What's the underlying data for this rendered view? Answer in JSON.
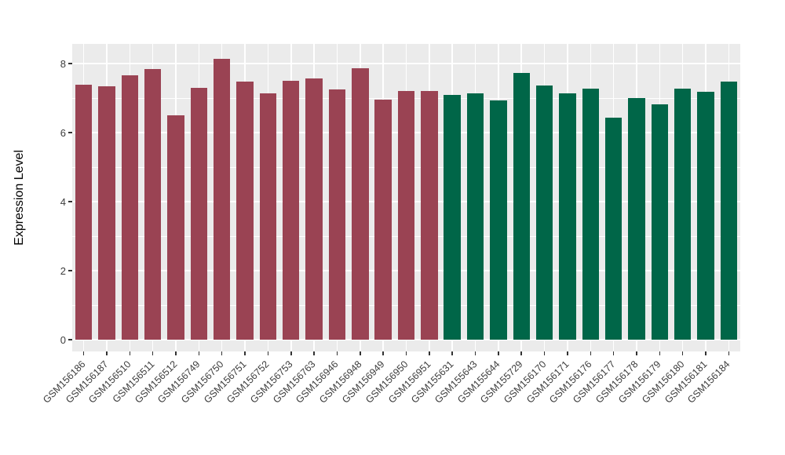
{
  "chart_data": {
    "type": "bar",
    "title": "",
    "xlabel": "",
    "ylabel": "Expression Level",
    "ylim": [
      0,
      8.6
    ],
    "yticks": [
      0,
      2,
      4,
      6,
      8
    ],
    "yticks_minor": [
      1,
      3,
      5,
      7
    ],
    "grid": "on",
    "legend": "none",
    "panel_bg": "#EBEBEB",
    "grid_color": "#FFFFFF",
    "tick_color": "#333333",
    "axis_text_color": "#3d3d3d",
    "group_colors": [
      "#9A4353",
      "#006648"
    ],
    "categories": [
      "GSM156186",
      "GSM156187",
      "GSM156510",
      "GSM156511",
      "GSM156512",
      "GSM156749",
      "GSM156750",
      "GSM156751",
      "GSM156752",
      "GSM156753",
      "GSM156763",
      "GSM156946",
      "GSM156948",
      "GSM156949",
      "GSM156950",
      "GSM156951",
      "GSM155631",
      "GSM155643",
      "GSM155644",
      "GSM155729",
      "GSM156170",
      "GSM156171",
      "GSM156176",
      "GSM156177",
      "GSM156178",
      "GSM156179",
      "GSM156180",
      "GSM156181",
      "GSM156184"
    ],
    "values": [
      7.39,
      7.33,
      7.65,
      7.83,
      6.49,
      7.29,
      8.13,
      7.48,
      7.13,
      7.49,
      7.56,
      7.26,
      7.87,
      6.96,
      7.2,
      7.2,
      7.08,
      7.13,
      6.94,
      7.73,
      7.36,
      7.14,
      7.27,
      6.44,
      7.01,
      6.81,
      7.27,
      7.19,
      7.47
    ],
    "group_of": [
      0,
      0,
      0,
      0,
      0,
      0,
      0,
      0,
      0,
      0,
      0,
      0,
      0,
      0,
      0,
      0,
      1,
      1,
      1,
      1,
      1,
      1,
      1,
      1,
      1,
      1,
      1,
      1,
      1
    ]
  }
}
